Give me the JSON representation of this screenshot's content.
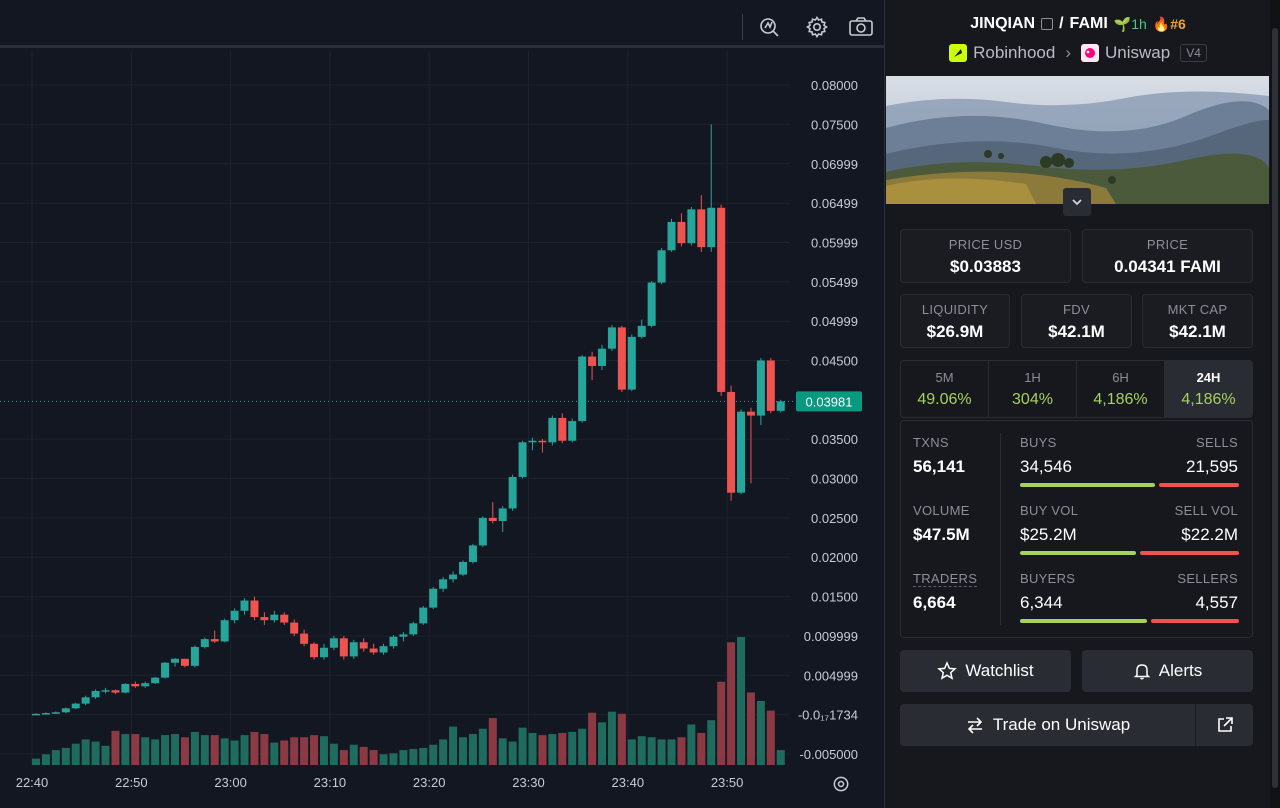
{
  "toolbar": {
    "icons": [
      "indicator-icon",
      "gear-icon",
      "camera-icon"
    ]
  },
  "chart": {
    "current_price_label": "0.03981",
    "settings_icon": "gear-icon"
  },
  "chart_data": {
    "type": "candlestick",
    "y_ticks": [
      "0.08000",
      "0.07500",
      "0.06999",
      "0.06499",
      "0.05999",
      "0.05499",
      "0.04999",
      "0.04500",
      "0.03500",
      "0.03000",
      "0.02500",
      "0.02000",
      "0.01500",
      "0.009999",
      "0.004999",
      "-0.0₁₇1734",
      "-0.005000"
    ],
    "y_tick_values": [
      0.08,
      0.075,
      0.06999,
      0.06499,
      0.05999,
      0.05499,
      0.04999,
      0.045,
      0.035,
      0.03,
      0.025,
      0.02,
      0.015,
      0.009999,
      0.004999,
      0.0,
      -0.005
    ],
    "ylim": [
      -0.0055,
      0.0835
    ],
    "x_ticks": [
      "22:40",
      "22:50",
      "23:00",
      "23:10",
      "23:20",
      "23:30",
      "23:40",
      "23:50"
    ],
    "candle_interval_minutes": 1,
    "current_price": 0.03981,
    "candles": [
      {
        "t": "22:40",
        "o": 0.0001,
        "h": 0.0002,
        "l": 0.0,
        "c": 0.0001
      },
      {
        "t": "22:41",
        "o": 0.0001,
        "h": 0.0003,
        "l": 0.0,
        "c": 0.0002
      },
      {
        "t": "22:42",
        "o": 0.0002,
        "h": 0.0004,
        "l": 0.0001,
        "c": 0.0003
      },
      {
        "t": "22:43",
        "o": 0.0003,
        "h": 0.0009,
        "l": 0.0002,
        "c": 0.0008
      },
      {
        "t": "22:44",
        "o": 0.0008,
        "h": 0.0015,
        "l": 0.0007,
        "c": 0.0014
      },
      {
        "t": "22:45",
        "o": 0.0014,
        "h": 0.0024,
        "l": 0.0012,
        "c": 0.0022
      },
      {
        "t": "22:46",
        "o": 0.0022,
        "h": 0.0032,
        "l": 0.002,
        "c": 0.003
      },
      {
        "t": "22:47",
        "o": 0.003,
        "h": 0.0034,
        "l": 0.0027,
        "c": 0.0031
      },
      {
        "t": "22:48",
        "o": 0.0031,
        "h": 0.0032,
        "l": 0.0026,
        "c": 0.0028
      },
      {
        "t": "22:49",
        "o": 0.0028,
        "h": 0.004,
        "l": 0.0027,
        "c": 0.0039
      },
      {
        "t": "22:50",
        "o": 0.0039,
        "h": 0.0042,
        "l": 0.0034,
        "c": 0.0036
      },
      {
        "t": "22:51",
        "o": 0.0036,
        "h": 0.0042,
        "l": 0.0034,
        "c": 0.004
      },
      {
        "t": "22:52",
        "o": 0.004,
        "h": 0.0048,
        "l": 0.0039,
        "c": 0.0047
      },
      {
        "t": "22:53",
        "o": 0.0047,
        "h": 0.0067,
        "l": 0.0046,
        "c": 0.0066
      },
      {
        "t": "22:54",
        "o": 0.0066,
        "h": 0.0072,
        "l": 0.0061,
        "c": 0.0071
      },
      {
        "t": "22:55",
        "o": 0.0071,
        "h": 0.0071,
        "l": 0.006,
        "c": 0.0062
      },
      {
        "t": "22:56",
        "o": 0.0062,
        "h": 0.0088,
        "l": 0.006,
        "c": 0.0086
      },
      {
        "t": "22:57",
        "o": 0.0086,
        "h": 0.0098,
        "l": 0.0084,
        "c": 0.0096
      },
      {
        "t": "22:58",
        "o": 0.0096,
        "h": 0.0107,
        "l": 0.0091,
        "c": 0.0093
      },
      {
        "t": "22:59",
        "o": 0.0093,
        "h": 0.0122,
        "l": 0.0092,
        "c": 0.012
      },
      {
        "t": "23:00",
        "o": 0.012,
        "h": 0.0135,
        "l": 0.0116,
        "c": 0.0132
      },
      {
        "t": "23:01",
        "o": 0.0132,
        "h": 0.0148,
        "l": 0.0127,
        "c": 0.0145
      },
      {
        "t": "23:02",
        "o": 0.0145,
        "h": 0.015,
        "l": 0.012,
        "c": 0.0124
      },
      {
        "t": "23:03",
        "o": 0.0124,
        "h": 0.013,
        "l": 0.0114,
        "c": 0.012
      },
      {
        "t": "23:04",
        "o": 0.012,
        "h": 0.0132,
        "l": 0.0117,
        "c": 0.0127
      },
      {
        "t": "23:05",
        "o": 0.0127,
        "h": 0.013,
        "l": 0.0114,
        "c": 0.0117
      },
      {
        "t": "23:06",
        "o": 0.0117,
        "h": 0.0121,
        "l": 0.01,
        "c": 0.0103
      },
      {
        "t": "23:07",
        "o": 0.0103,
        "h": 0.0108,
        "l": 0.0087,
        "c": 0.009
      },
      {
        "t": "23:08",
        "o": 0.009,
        "h": 0.0092,
        "l": 0.007,
        "c": 0.0073
      },
      {
        "t": "23:09",
        "o": 0.0073,
        "h": 0.009,
        "l": 0.007,
        "c": 0.0085
      },
      {
        "t": "23:10",
        "o": 0.0085,
        "h": 0.01,
        "l": 0.0082,
        "c": 0.0097
      },
      {
        "t": "23:11",
        "o": 0.0097,
        "h": 0.01,
        "l": 0.007,
        "c": 0.0074
      },
      {
        "t": "23:12",
        "o": 0.0074,
        "h": 0.0095,
        "l": 0.0071,
        "c": 0.0092
      },
      {
        "t": "23:13",
        "o": 0.0092,
        "h": 0.0097,
        "l": 0.008,
        "c": 0.0084
      },
      {
        "t": "23:14",
        "o": 0.0084,
        "h": 0.009,
        "l": 0.0076,
        "c": 0.0079
      },
      {
        "t": "23:15",
        "o": 0.0079,
        "h": 0.009,
        "l": 0.0076,
        "c": 0.0087
      },
      {
        "t": "23:16",
        "o": 0.0087,
        "h": 0.0101,
        "l": 0.0084,
        "c": 0.0099
      },
      {
        "t": "23:17",
        "o": 0.0099,
        "h": 0.0105,
        "l": 0.0093,
        "c": 0.0102
      },
      {
        "t": "23:18",
        "o": 0.0102,
        "h": 0.0118,
        "l": 0.01,
        "c": 0.0116
      },
      {
        "t": "23:19",
        "o": 0.0116,
        "h": 0.0138,
        "l": 0.0114,
        "c": 0.0136
      },
      {
        "t": "23:20",
        "o": 0.0136,
        "h": 0.0162,
        "l": 0.0134,
        "c": 0.016
      },
      {
        "t": "23:21",
        "o": 0.016,
        "h": 0.0175,
        "l": 0.0156,
        "c": 0.0172
      },
      {
        "t": "23:22",
        "o": 0.0172,
        "h": 0.0182,
        "l": 0.0168,
        "c": 0.0178
      },
      {
        "t": "23:23",
        "o": 0.0178,
        "h": 0.0196,
        "l": 0.0176,
        "c": 0.0194
      },
      {
        "t": "23:24",
        "o": 0.0194,
        "h": 0.0217,
        "l": 0.0192,
        "c": 0.0215
      },
      {
        "t": "23:25",
        "o": 0.0215,
        "h": 0.0252,
        "l": 0.0213,
        "c": 0.025
      },
      {
        "t": "23:26",
        "o": 0.025,
        "h": 0.027,
        "l": 0.0243,
        "c": 0.0246
      },
      {
        "t": "23:27",
        "o": 0.0246,
        "h": 0.0265,
        "l": 0.0232,
        "c": 0.0262
      },
      {
        "t": "23:28",
        "o": 0.0262,
        "h": 0.0305,
        "l": 0.0259,
        "c": 0.0302
      },
      {
        "t": "23:29",
        "o": 0.0302,
        "h": 0.0348,
        "l": 0.03,
        "c": 0.0346
      },
      {
        "t": "23:30",
        "o": 0.0346,
        "h": 0.0352,
        "l": 0.0336,
        "c": 0.0348
      },
      {
        "t": "23:31",
        "o": 0.0348,
        "h": 0.035,
        "l": 0.0333,
        "c": 0.0346
      },
      {
        "t": "23:32",
        "o": 0.0346,
        "h": 0.038,
        "l": 0.0342,
        "c": 0.0377
      },
      {
        "t": "23:33",
        "o": 0.0377,
        "h": 0.0383,
        "l": 0.0345,
        "c": 0.0348
      },
      {
        "t": "23:34",
        "o": 0.0348,
        "h": 0.0376,
        "l": 0.0346,
        "c": 0.0373
      },
      {
        "t": "23:35",
        "o": 0.0373,
        "h": 0.0457,
        "l": 0.0371,
        "c": 0.0455
      },
      {
        "t": "23:36",
        "o": 0.0455,
        "h": 0.0461,
        "l": 0.0425,
        "c": 0.0443
      },
      {
        "t": "23:37",
        "o": 0.0443,
        "h": 0.047,
        "l": 0.0438,
        "c": 0.0465
      },
      {
        "t": "23:38",
        "o": 0.0465,
        "h": 0.0495,
        "l": 0.0462,
        "c": 0.0492
      },
      {
        "t": "23:39",
        "o": 0.0492,
        "h": 0.0494,
        "l": 0.041,
        "c": 0.0413
      },
      {
        "t": "23:40",
        "o": 0.0413,
        "h": 0.0483,
        "l": 0.0411,
        "c": 0.048
      },
      {
        "t": "23:41",
        "o": 0.048,
        "h": 0.0502,
        "l": 0.0478,
        "c": 0.0494
      },
      {
        "t": "23:42",
        "o": 0.0494,
        "h": 0.0551,
        "l": 0.0492,
        "c": 0.0549
      },
      {
        "t": "23:43",
        "o": 0.0549,
        "h": 0.0593,
        "l": 0.0547,
        "c": 0.059
      },
      {
        "t": "23:44",
        "o": 0.059,
        "h": 0.063,
        "l": 0.0588,
        "c": 0.0626
      },
      {
        "t": "23:45",
        "o": 0.0626,
        "h": 0.0637,
        "l": 0.0595,
        "c": 0.0599
      },
      {
        "t": "23:46",
        "o": 0.0599,
        "h": 0.0645,
        "l": 0.0596,
        "c": 0.0642
      },
      {
        "t": "23:47",
        "o": 0.0642,
        "h": 0.066,
        "l": 0.0588,
        "c": 0.0594
      },
      {
        "t": "23:48",
        "o": 0.0594,
        "h": 0.075,
        "l": 0.0588,
        "c": 0.0644
      },
      {
        "t": "23:49",
        "o": 0.0644,
        "h": 0.0648,
        "l": 0.0405,
        "c": 0.041
      },
      {
        "t": "23:50",
        "o": 0.041,
        "h": 0.0418,
        "l": 0.0272,
        "c": 0.0282
      },
      {
        "t": "23:51",
        "o": 0.0282,
        "h": 0.0388,
        "l": 0.028,
        "c": 0.0385
      },
      {
        "t": "23:52",
        "o": 0.0385,
        "h": 0.039,
        "l": 0.0294,
        "c": 0.038
      },
      {
        "t": "23:53",
        "o": 0.038,
        "h": 0.0453,
        "l": 0.0368,
        "c": 0.045
      },
      {
        "t": "23:54",
        "o": 0.045,
        "h": 0.0453,
        "l": 0.0383,
        "c": 0.0386
      },
      {
        "t": "23:55",
        "o": 0.0386,
        "h": 0.04,
        "l": 0.0384,
        "c": 0.0398
      }
    ],
    "volume": [
      0.6,
      1.0,
      1.4,
      1.6,
      2.0,
      2.4,
      2.2,
      1.8,
      3.2,
      2.9,
      2.9,
      2.6,
      2.4,
      2.8,
      2.9,
      2.6,
      3.1,
      2.8,
      2.8,
      2.5,
      2.3,
      2.8,
      3.1,
      2.9,
      2.1,
      2.3,
      2.6,
      2.6,
      2.8,
      2.7,
      2.0,
      1.4,
      1.9,
      1.7,
      1.4,
      1.0,
      1.1,
      1.4,
      1.5,
      1.6,
      1.9,
      2.4,
      3.6,
      2.6,
      2.9,
      3.4,
      4.4,
      2.5,
      2.2,
      3.5,
      3.0,
      2.8,
      2.9,
      3.0,
      3.1,
      3.4,
      4.9,
      4.0,
      5.0,
      4.8,
      2.4,
      2.7,
      2.6,
      2.4,
      2.4,
      2.6,
      3.8,
      3.0,
      4.2,
      7.8,
      11.5,
      12.0,
      6.8,
      6.0,
      5.1,
      1.4
    ],
    "volume_max": 12.0
  },
  "panel": {
    "pair": {
      "base": "JINQIAN",
      "separator": "/",
      "quote": "FAMI",
      "timeframe": "1h",
      "rank": "#6"
    },
    "dex": {
      "chain": "Robinhood",
      "dex": "Uniswap",
      "version": "V4"
    },
    "price_usd": {
      "label": "PRICE USD",
      "value": "$0.03883"
    },
    "price": {
      "label": "PRICE",
      "value": "0.04341 FAMI"
    },
    "liquidity": {
      "label": "LIQUIDITY",
      "value": "$26.9M"
    },
    "fdv": {
      "label": "FDV",
      "value": "$42.1M"
    },
    "mktcap": {
      "label": "MKT CAP",
      "value": "$42.1M"
    },
    "timeframes": [
      {
        "label": "5M",
        "value": "49.06%"
      },
      {
        "label": "1H",
        "value": "304%"
      },
      {
        "label": "6H",
        "value": "4,186%"
      },
      {
        "label": "24H",
        "value": "4,186%"
      }
    ],
    "active_timeframe": "24H",
    "stats": {
      "txns": {
        "label": "TXNS",
        "value": "56,141"
      },
      "buys": {
        "label": "BUYS",
        "value": "34,546"
      },
      "sells": {
        "label": "SELLS",
        "value": "21,595"
      },
      "buys_ratio": 0.615,
      "volume": {
        "label": "VOLUME",
        "value": "$47.5M"
      },
      "buy_vol": {
        "label": "BUY VOL",
        "value": "$25.2M"
      },
      "sell_vol": {
        "label": "SELL VOL",
        "value": "$22.2M"
      },
      "buy_vol_ratio": 0.53,
      "traders": {
        "label": "TRADERS",
        "value": "6,664"
      },
      "buyers": {
        "label": "BUYERS",
        "value": "6,344"
      },
      "sellers": {
        "label": "SELLERS",
        "value": "4,557"
      },
      "buyers_ratio": 0.58
    },
    "buttons": {
      "watchlist": "Watchlist",
      "alerts": "Alerts",
      "trade": "Trade on Uniswap"
    },
    "colors": {
      "up": "#26a69a",
      "down": "#ef5350",
      "positive": "#a6d15a",
      "buy_bar": "#a6d15a",
      "sell_bar": "#ef5350",
      "rank": "#f0a430"
    }
  }
}
